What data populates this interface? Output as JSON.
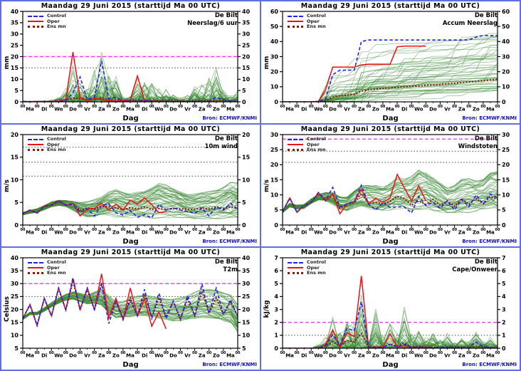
{
  "page": {
    "background": "#ffffff",
    "frame_color": "#5f6fe0"
  },
  "legend": {
    "control": "Control",
    "oper": "Oper",
    "ens_mean": "Ens mn"
  },
  "x_axis": {
    "xlabel": "Dag",
    "hour_label": "00",
    "days_total": 15,
    "step_hours": 12,
    "day_labels": [
      "Ma",
      "Di",
      "Wo",
      "Do",
      "Vr",
      "Za",
      "Zo",
      "Ma",
      "Di",
      "Wo",
      "Do",
      "Vr",
      "Za",
      "Zo",
      "Ma"
    ]
  },
  "colors": {
    "control": "#2222ee",
    "oper": "#ee1111",
    "ens_mean": "#8b1a00",
    "ensemble": "rgba(55,135,50,0.5)",
    "warning_line": "#ff33ff",
    "threshold_line": "#444444",
    "axis": "#000000",
    "source_text": "#1111cc"
  },
  "chart_data": [
    {
      "id": "neerslag-6uur",
      "type": "line",
      "title": "Maandag  29 Juni   2015  (starttijd Ma 00 UTC)",
      "station": "De Bilt",
      "variable": "Neerslag/6 uur",
      "ylabel": "mm",
      "xlabel": "Dag",
      "source": "Bron: ECMWF/KNMI",
      "ylim": [
        0,
        40
      ],
      "ytick": 5,
      "thresholds": [
        {
          "value": 20,
          "style": "dash-magenta"
        },
        {
          "value": 15,
          "style": "dot-black"
        }
      ],
      "ensemble_mode": "spiky",
      "ensemble_count": 48,
      "series": {
        "control": [
          0.2,
          0.1,
          0.1,
          0.2,
          0.1,
          0.2,
          0.5,
          4,
          11,
          1,
          2,
          18,
          1.5,
          2,
          0.3,
          0.2,
          0.3,
          0.5,
          0.3,
          0.2,
          0.2,
          0.3,
          0.2,
          0.2,
          0.3,
          0.2,
          0.3,
          2,
          1,
          0.3,
          0.2
        ],
        "oper": [
          0.2,
          0.1,
          0.2,
          0.1,
          0.2,
          0.3,
          1,
          22,
          2,
          0.5,
          1.5,
          1,
          0.5,
          0.3,
          0.5,
          1,
          11.5,
          0.5,
          0.3,
          0.2,
          0.2
        ],
        "ens_mean": [
          0.1,
          0.1,
          0.1,
          0.1,
          0.2,
          0.3,
          0.8,
          1.6,
          1.5,
          0.8,
          1,
          1.8,
          1,
          0.8,
          0.5,
          0.5,
          0.8,
          0.6,
          0.5,
          0.5,
          0.5,
          0.5,
          0.5,
          0.4,
          0.5,
          0.6,
          0.5,
          0.6,
          0.5,
          0.4,
          0.3
        ]
      },
      "envelope": {
        "max": [
          0.3,
          0.3,
          0.3,
          0.5,
          1,
          2,
          6,
          17,
          12,
          6,
          14,
          31,
          13,
          12,
          3,
          3,
          11,
          10,
          11,
          6,
          7,
          5,
          2.5,
          3,
          10,
          8,
          13,
          16.5,
          6,
          3,
          5
        ],
        "min": [
          0,
          0,
          0,
          0,
          0,
          0,
          0,
          0,
          0,
          0,
          0,
          0,
          0,
          0,
          0,
          0,
          0,
          0,
          0,
          0,
          0,
          0,
          0,
          0,
          0,
          0,
          0,
          0,
          0,
          0,
          0
        ]
      }
    },
    {
      "id": "accum-neerslag",
      "type": "line",
      "title": "Maandag  29 Juni   2015  (starttijd Ma 00 UTC)",
      "station": "De Bilt",
      "variable": "Accum Neerslag",
      "ylabel": "mm",
      "xlabel": "Dag",
      "source": "Bron: ECMWF/KNMI",
      "ylim": [
        0,
        60
      ],
      "ytick": 10,
      "thresholds": [],
      "ensemble_mode": "accum",
      "ensemble_count": 48,
      "series": {
        "control": [
          0,
          0,
          0,
          0,
          0,
          0,
          2,
          18,
          21,
          21,
          21,
          40,
          41,
          41,
          41,
          41,
          41,
          41,
          41,
          41,
          41,
          41,
          41,
          41,
          41,
          41,
          41,
          43,
          44,
          44,
          44
        ],
        "oper": [
          0,
          0,
          0,
          0,
          0,
          0,
          8,
          23,
          23,
          23,
          23,
          24.5,
          25,
          25,
          25,
          25,
          36.5,
          37,
          37,
          37,
          37
        ],
        "ens_mean": [
          0,
          0,
          0,
          0,
          0,
          0.2,
          1,
          3,
          4,
          4.5,
          5,
          7,
          8,
          8.5,
          9,
          9.3,
          9.6,
          10,
          10.2,
          10.5,
          11,
          11.2,
          11.5,
          12,
          12.3,
          12.8,
          13.2,
          13.6,
          14,
          14.5,
          15
        ]
      },
      "envelope": {
        "max": [
          0,
          0,
          0,
          0,
          0,
          0.5,
          10,
          29,
          30,
          30,
          31,
          37,
          38,
          38,
          38,
          39,
          40,
          44,
          46,
          46,
          46,
          46,
          46,
          46,
          46,
          46,
          46,
          46,
          46,
          46,
          46
        ],
        "min": [
          0,
          0,
          0,
          0,
          0,
          0,
          0,
          0.5,
          1,
          1,
          1,
          1.5,
          2,
          2,
          2,
          2,
          2.5,
          2.5,
          3,
          3,
          3,
          3,
          3.5,
          3.5,
          4,
          4,
          5,
          5,
          6,
          6.5,
          7
        ]
      }
    },
    {
      "id": "wind-10m",
      "type": "line",
      "title": "Maandag  29 Juni   2015  (starttijd Ma 00 UTC)",
      "station": "De Bilt",
      "variable": "10m wind",
      "ylabel": "m/s",
      "xlabel": "Dag",
      "source": "Bron: ECMWF/KNMI",
      "ylim": [
        0,
        20
      ],
      "ytick": 5,
      "thresholds": [
        {
          "value": 17.2,
          "style": "dot-black"
        },
        {
          "value": 13.9,
          "style": "dot-black"
        },
        {
          "value": 10.8,
          "style": "dot-black"
        }
      ],
      "ensemble_mode": "band",
      "ensemble_count": 48,
      "series": {
        "control": [
          2.5,
          3.3,
          2.6,
          4.2,
          4.4,
          5.4,
          4.4,
          4.6,
          2.8,
          3.6,
          2,
          4.4,
          4.7,
          2.7,
          2.2,
          3.2,
          1.7,
          2.3,
          1.6,
          4.5,
          3.3,
          3.8,
          3.3,
          3,
          2.6,
          3.7,
          2,
          4,
          3.3,
          4.8,
          3.5
        ],
        "oper": [
          2.5,
          3.3,
          2.6,
          4.2,
          4.4,
          5.4,
          4.4,
          4.8,
          2,
          3.5,
          3.7,
          4.8,
          3.3,
          4.6,
          3.3,
          5.5,
          4.6,
          6,
          4.5,
          2.7,
          3
        ],
        "ens_mean": [
          2.5,
          3.3,
          2.7,
          4.1,
          4.3,
          5.2,
          4.4,
          4.7,
          3.2,
          3.8,
          3.5,
          4.2,
          4,
          3.8,
          3.4,
          3.8,
          3.6,
          4,
          3.5,
          3.6,
          3.5,
          3.7,
          3.6,
          3.5,
          3.4,
          3.8,
          3.5,
          4,
          3.6,
          4,
          3.6
        ]
      },
      "envelope": {
        "max": [
          2.8,
          3.7,
          3.1,
          4.7,
          5,
          6,
          5.2,
          5.8,
          4.5,
          5.5,
          5.5,
          6.5,
          7,
          9.3,
          6.5,
          7.5,
          7,
          8.5,
          7.5,
          11.5,
          8,
          9,
          7.5,
          7,
          6.5,
          8,
          7,
          8.5,
          7.5,
          10.8,
          9.5
        ],
        "min": [
          2.2,
          2.9,
          2.2,
          3.6,
          3.8,
          4.6,
          3.6,
          3.6,
          1.5,
          2,
          1,
          2.2,
          1.8,
          1.5,
          1.2,
          1.5,
          1.2,
          1.5,
          1,
          1.5,
          1.2,
          1.3,
          1.2,
          1,
          0.8,
          1.2,
          1,
          1.3,
          1,
          1.5,
          1.5
        ]
      }
    },
    {
      "id": "windstoten",
      "type": "line",
      "title": "Maandag  29 Juni   2015  (starttijd Ma 00 UTC)",
      "station": "De Bilt",
      "variable": "Windstoten",
      "ylabel": "m/s",
      "xlabel": "Dag",
      "source": "Bron: ECMWF/KNMI",
      "ylim": [
        0,
        30
      ],
      "ytick": 5,
      "thresholds": [
        {
          "value": 28.5,
          "style": "dash-magenta"
        },
        {
          "value": 24.5,
          "style": "dot-black"
        },
        {
          "value": 20.8,
          "style": "dot-black"
        }
      ],
      "ensemble_mode": "band",
      "ensemble_count": 48,
      "series": {
        "control": [
          4.5,
          9,
          4.2,
          6.5,
          7.5,
          10.8,
          8.2,
          12.5,
          6,
          7,
          7.8,
          13.2,
          7,
          5,
          7.5,
          5.8,
          6,
          6,
          4,
          9.5,
          6.5,
          7.5,
          5.5,
          8,
          5,
          8.5,
          6,
          10,
          7,
          10.3,
          9
        ],
        "oper": [
          4.5,
          9,
          4.2,
          6.5,
          7.5,
          10.8,
          8.2,
          10.4,
          3.7,
          7,
          7.8,
          11.8,
          7,
          8.8,
          7.5,
          9,
          16.8,
          12.3,
          8,
          13,
          8
        ],
        "ens_mean": [
          4.5,
          8.8,
          4.4,
          6.3,
          7.4,
          10.5,
          8,
          10,
          5.5,
          7,
          7.5,
          10.5,
          7.2,
          7.5,
          7,
          7.8,
          9.5,
          8.8,
          6.5,
          8,
          6.8,
          8.5,
          6.5,
          8,
          6.2,
          8.8,
          6.8,
          8.8,
          7,
          9.5,
          8.5
        ]
      },
      "envelope": {
        "max": [
          5,
          9.5,
          5,
          7.2,
          8.2,
          11.5,
          9.5,
          13,
          8,
          10,
          10.5,
          15.5,
          12,
          16,
          11,
          14,
          17,
          16.5,
          13,
          23.8,
          15,
          18,
          13,
          13,
          11,
          18.5,
          14,
          16.5,
          13,
          19.8,
          18
        ],
        "min": [
          4,
          8,
          3.6,
          5.6,
          6.6,
          9.5,
          7,
          8,
          3.5,
          4.5,
          5,
          7,
          4,
          4.5,
          4,
          4.5,
          5,
          5.5,
          4,
          4.5,
          4,
          4.5,
          3.5,
          4,
          3,
          4,
          3,
          4.5,
          4,
          5,
          5
        ]
      }
    },
    {
      "id": "t2m",
      "type": "line",
      "title": "Maandag  29 Juni   2015  (starttijd Ma 00 UTC)",
      "station": "De Bilt",
      "variable": "T2m",
      "ylabel": "Celsius",
      "xlabel": "Dag",
      "source": "Bron: ECMWF/KNMI",
      "ylim": [
        5,
        40
      ],
      "ytick": 5,
      "thresholds": [
        {
          "value": 30,
          "style": "dash-magenta"
        },
        {
          "value": 25,
          "style": "dot-black"
        }
      ],
      "ensemble_mode": "band",
      "ensemble_count": 48,
      "series": {
        "control": [
          16.5,
          21.8,
          13.8,
          24.3,
          17.5,
          28.3,
          19.8,
          32.3,
          20,
          28.3,
          20,
          30.3,
          14.5,
          23,
          16,
          23.5,
          17.5,
          27.8,
          16.5,
          26.3,
          16.5,
          23.3,
          16,
          25.3,
          17.5,
          29.8,
          18.5,
          28.3,
          18,
          23.8,
          17
        ],
        "oper": [
          16.5,
          21.8,
          13.8,
          24.3,
          17.5,
          28.3,
          19.8,
          31.8,
          20,
          28.3,
          20,
          33.8,
          17,
          24.3,
          16,
          28.3,
          17.5,
          24,
          13.5,
          19,
          12.5
        ],
        "ens_mean": [
          16.5,
          21.8,
          13.9,
          24.2,
          17.5,
          28,
          19.8,
          31,
          19.8,
          27.5,
          19.8,
          30,
          16.5,
          23.5,
          16.5,
          24.5,
          17.5,
          25.5,
          17,
          24.5,
          17,
          23,
          16.5,
          24,
          17.5,
          27,
          18.5,
          24.5,
          18,
          23,
          17.5
        ]
      },
      "envelope": {
        "max": [
          17,
          22.3,
          14.5,
          25,
          18.5,
          29.3,
          21,
          33,
          21.5,
          30,
          21.5,
          35.5,
          20,
          27,
          19,
          29,
          21,
          31,
          20,
          30,
          20,
          28.5,
          20.5,
          30,
          22,
          34,
          23,
          33,
          22.5,
          30,
          22
        ],
        "min": [
          16,
          21.2,
          13.2,
          23.5,
          16.5,
          27,
          18.5,
          29.5,
          18,
          26,
          18,
          27,
          13.5,
          19.5,
          13.5,
          20,
          14,
          21,
          13.5,
          19.5,
          13,
          18,
          12,
          18.5,
          12.5,
          20,
          13,
          19,
          12,
          16.5,
          11
        ]
      }
    },
    {
      "id": "cape-onweer",
      "type": "line",
      "title": "Maandag  29 Juni   2015  (starttijd Ma 00 UTC)",
      "station": "De Bilt",
      "variable": "Cape/Onweer",
      "ylabel": "kJ/kg",
      "xlabel": "Dag",
      "source": "Bron: ECMWF/KNMI",
      "ylim": [
        0,
        7
      ],
      "ytick": 1,
      "thresholds": [
        {
          "value": 2,
          "style": "dash-magenta"
        },
        {
          "value": 1,
          "style": "dot-black"
        }
      ],
      "ensemble_mode": "spiky",
      "ensemble_count": 48,
      "series": {
        "control": [
          0,
          0,
          0,
          0,
          0,
          0,
          0.2,
          1.05,
          0.2,
          1.55,
          1.35,
          3.6,
          0.1,
          0.05,
          0.05,
          0.3,
          0.1,
          0.3,
          0.05,
          0.1,
          0.05,
          0.05,
          0.05,
          0.1,
          0.05,
          0.05,
          0.05,
          0.5,
          0.1,
          0.05,
          0
        ],
        "oper": [
          0,
          0,
          0,
          0,
          0,
          0,
          0.3,
          1.4,
          0.1,
          1.2,
          0.9,
          5.6,
          0.1,
          0.05,
          0.1,
          1.1,
          0.1,
          0.2,
          0.05,
          0.05,
          0
        ],
        "ens_mean": [
          0,
          0,
          0,
          0,
          0,
          0,
          0.15,
          0.5,
          0.2,
          0.6,
          0.5,
          1.15,
          0.1,
          0.1,
          0.1,
          0.3,
          0.15,
          0.4,
          0.1,
          0.15,
          0.1,
          0.1,
          0.05,
          0.1,
          0.08,
          0.1,
          0.05,
          0.15,
          0.08,
          0.05,
          0
        ]
      },
      "envelope": {
        "max": [
          0,
          0,
          0,
          0,
          0,
          0.3,
          1,
          2.5,
          1.2,
          2.6,
          2,
          4.5,
          0.6,
          3.2,
          1,
          2.5,
          1.2,
          3.6,
          1.2,
          1.6,
          0.8,
          1.5,
          0.8,
          1.3,
          0.6,
          0.9,
          0.6,
          1.5,
          0.6,
          1,
          0.3
        ],
        "min": [
          0,
          0,
          0,
          0,
          0,
          0,
          0,
          0,
          0,
          0,
          0,
          0,
          0,
          0,
          0,
          0,
          0,
          0,
          0,
          0,
          0,
          0,
          0,
          0,
          0,
          0,
          0,
          0,
          0,
          0,
          0
        ]
      }
    }
  ]
}
